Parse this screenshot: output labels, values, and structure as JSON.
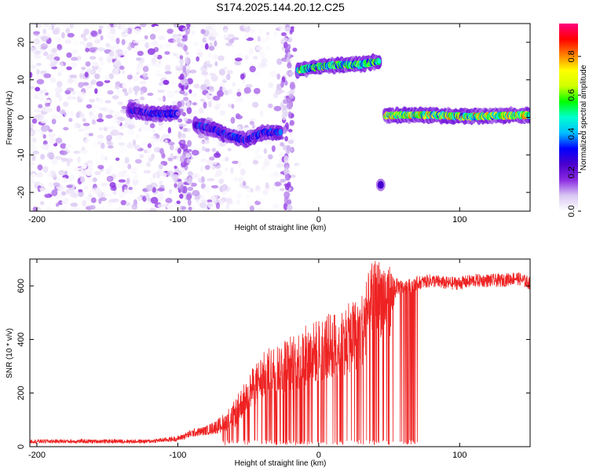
{
  "figure": {
    "title": "S174.2025.144.20.12.C25"
  },
  "chart_data": [
    {
      "type": "heatmap",
      "name": "spectrogram",
      "xlabel": "Height of straight line (km)",
      "ylabel": "Frequency (Hz)",
      "xlim": [
        -205,
        150
      ],
      "ylim": [
        -25,
        25
      ],
      "xticks": [
        -200,
        -100,
        0,
        100
      ],
      "yticks": [
        -20,
        -10,
        0,
        10,
        20
      ],
      "grid": false,
      "colorbar": {
        "label": "Normalized spectral amplitude",
        "range": [
          0,
          0.97
        ],
        "ticks": [
          0.0,
          0.2,
          0.4,
          0.6,
          0.8
        ],
        "colors": [
          "#ffffff",
          "#d9c7f2",
          "#8a2be2",
          "#4b00cc",
          "#0000ff",
          "#00bfff",
          "#00ffd0",
          "#00ff00",
          "#d0ff00",
          "#ffff00",
          "#ff8000",
          "#ff0000",
          "#ff0080"
        ]
      },
      "noise_region": {
        "x": [
          -205,
          -15
        ],
        "f": [
          -25,
          25
        ]
      },
      "tracks": [
        {
          "x": [
            -135,
            -100
          ],
          "f": [
            2,
            1,
            1
          ],
          "amplitude": 0.3
        },
        {
          "x": [
            -88,
            -27
          ],
          "f": [
            -2,
            -3,
            -5,
            -6,
            -4,
            -4
          ],
          "amplitude": 0.32
        },
        {
          "x": [
            -15,
            43
          ],
          "f": [
            12.5,
            13.5,
            14,
            14,
            15
          ],
          "amplitude": 0.55
        },
        {
          "x": [
            47,
            150
          ],
          "f": [
            0.5,
            0.7,
            0.5,
            0.2,
            0.5,
            0.6
          ],
          "amplitude": 0.7
        }
      ],
      "blobs": [
        {
          "x": 44,
          "f": -18,
          "amplitude": 0.25
        }
      ]
    },
    {
      "type": "line",
      "name": "snr",
      "xlabel": "Height of straight line (km)",
      "ylabel": "SNR (10 * v/v)",
      "xlim": [
        -205,
        150
      ],
      "ylim": [
        0,
        700
      ],
      "xticks": [
        -200,
        -100,
        0,
        100
      ],
      "yticks": [
        0,
        200,
        400,
        600
      ],
      "grid": false,
      "series": [
        {
          "color": "#ee2222",
          "x": [
            -205,
            -180,
            -160,
            -140,
            -120,
            -100,
            -90,
            -80,
            -70,
            -60,
            -50,
            -40,
            -30,
            -20,
            -10,
            0,
            10,
            20,
            30,
            38,
            45,
            50,
            55,
            60,
            70,
            80,
            90,
            100,
            110,
            120,
            130,
            140,
            150
          ],
          "y": [
            20,
            20,
            20,
            20,
            20,
            30,
            50,
            60,
            80,
            120,
            200,
            260,
            290,
            310,
            330,
            360,
            380,
            400,
            430,
            540,
            560,
            540,
            600,
            590,
            610,
            620,
            610,
            610,
            620,
            620,
            620,
            630,
            610
          ],
          "noise": [
            15,
            15,
            15,
            15,
            15,
            20,
            30,
            35,
            60,
            100,
            140,
            180,
            200,
            220,
            240,
            240,
            250,
            260,
            280,
            300,
            300,
            300,
            60,
            60,
            50,
            50,
            50,
            50,
            50,
            50,
            50,
            50,
            50
          ],
          "dropouts_until": 70
        }
      ]
    }
  ]
}
